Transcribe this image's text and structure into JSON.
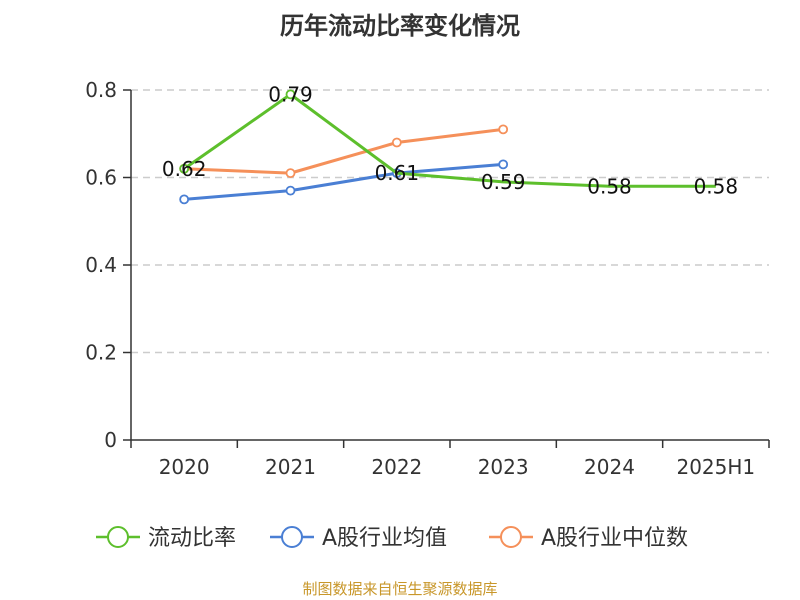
{
  "chart_data": {
    "type": "line",
    "title": "历年流动比率变化情况",
    "categories": [
      "2020",
      "2021",
      "2022",
      "2023",
      "2024",
      "2025H1"
    ],
    "ylim": [
      0,
      0.8
    ],
    "yticks": [
      "0",
      "0.2",
      "0.4",
      "0.6",
      "0.8"
    ],
    "grid": true,
    "legend_position": "bottom",
    "series": [
      {
        "name": "流动比率",
        "color": "#5dbf2c",
        "values": [
          0.62,
          0.79,
          0.61,
          0.59,
          0.58,
          0.58
        ],
        "labels": [
          "0.62",
          "0.79",
          "0.61",
          "0.59",
          "0.58",
          "0.58"
        ],
        "show_markers": [
          true,
          true,
          false,
          false,
          false,
          false
        ]
      },
      {
        "name": "A股行业均值",
        "color": "#4a7fd4",
        "values": [
          0.55,
          0.57,
          0.61,
          0.63,
          null,
          null
        ]
      },
      {
        "name": "A股行业中位数",
        "color": "#f5905a",
        "values": [
          0.62,
          0.61,
          0.68,
          0.71,
          null,
          null
        ]
      }
    ]
  },
  "source_note": "制图数据来自恒生聚源数据库"
}
